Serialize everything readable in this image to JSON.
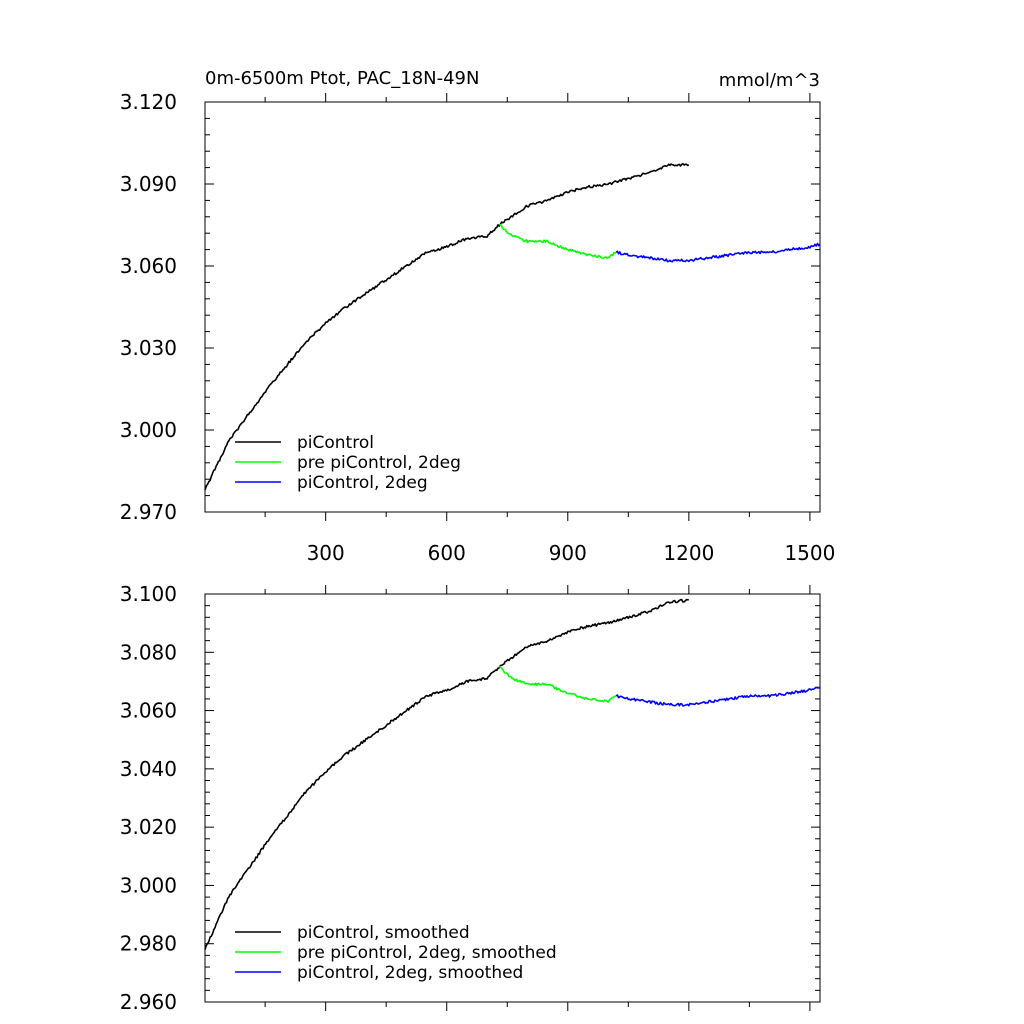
{
  "chart_data": [
    {
      "type": "line",
      "title": "0m-6500m Ptot, PAC_18N-49N",
      "units": "mmol/m^3",
      "xlim": [
        1,
        1525
      ],
      "ylim": [
        2.97,
        3.12
      ],
      "xticks": [
        300,
        600,
        900,
        1200,
        1500
      ],
      "yticks": [
        2.97,
        3.0,
        3.03,
        3.06,
        3.09,
        3.12
      ],
      "ytick_labels": [
        "2.970",
        "3.000",
        "3.030",
        "3.060",
        "3.090",
        "3.120"
      ],
      "show_x_tick_labels": true,
      "grid": false,
      "legend_position": "bottom-left",
      "series": [
        {
          "name": "piControl",
          "color": "#000000",
          "x": [
            1,
            20,
            40,
            60,
            80,
            100,
            130,
            160,
            200,
            250,
            300,
            350,
            400,
            450,
            500,
            550,
            600,
            650,
            700,
            730,
            760,
            800,
            850,
            900,
            950,
            1000,
            1050,
            1100,
            1150,
            1200
          ],
          "y": [
            2.978,
            2.984,
            2.99,
            2.996,
            3.0,
            3.004,
            3.01,
            3.016,
            3.023,
            3.032,
            3.039,
            3.045,
            3.05,
            3.055,
            3.06,
            3.065,
            3.067,
            3.07,
            3.071,
            3.075,
            3.078,
            3.082,
            3.084,
            3.087,
            3.089,
            3.09,
            3.092,
            3.094,
            3.097,
            3.097
          ]
        },
        {
          "name": "pre piControl, 2deg",
          "color": "#00ff00",
          "x": [
            730,
            760,
            800,
            850,
            900,
            950,
            1000,
            1020
          ],
          "y": [
            3.075,
            3.071,
            3.069,
            3.069,
            3.066,
            3.064,
            3.063,
            3.065
          ]
        },
        {
          "name": "piControl, 2deg",
          "color": "#0000ff",
          "x": [
            1020,
            1050,
            1100,
            1150,
            1200,
            1250,
            1300,
            1350,
            1400,
            1450,
            1500,
            1525
          ],
          "y": [
            3.065,
            3.064,
            3.063,
            3.062,
            3.062,
            3.063,
            3.064,
            3.065,
            3.065,
            3.066,
            3.067,
            3.068
          ]
        }
      ]
    },
    {
      "type": "line",
      "title": "",
      "units": "",
      "xlim": [
        1,
        1525
      ],
      "ylim": [
        2.96,
        3.1
      ],
      "xticks": [
        300,
        600,
        900,
        1200,
        1500
      ],
      "yticks": [
        2.96,
        2.98,
        3.0,
        3.02,
        3.04,
        3.06,
        3.08,
        3.1
      ],
      "ytick_labels": [
        "2.960",
        "2.980",
        "3.000",
        "3.020",
        "3.040",
        "3.060",
        "3.080",
        "3.100"
      ],
      "show_x_tick_labels": false,
      "grid": false,
      "legend_position": "bottom-left",
      "series": [
        {
          "name": "piControl, smoothed",
          "color": "#000000",
          "x": [
            1,
            20,
            40,
            60,
            80,
            100,
            130,
            160,
            200,
            250,
            300,
            350,
            400,
            450,
            500,
            550,
            600,
            650,
            700,
            730,
            760,
            800,
            850,
            900,
            950,
            1000,
            1050,
            1100,
            1150,
            1200
          ],
          "y": [
            2.978,
            2.984,
            2.99,
            2.996,
            3.0,
            3.004,
            3.01,
            3.016,
            3.023,
            3.032,
            3.039,
            3.045,
            3.05,
            3.055,
            3.06,
            3.065,
            3.067,
            3.07,
            3.071,
            3.075,
            3.078,
            3.082,
            3.084,
            3.087,
            3.089,
            3.09,
            3.092,
            3.094,
            3.097,
            3.098
          ]
        },
        {
          "name": "pre piControl, 2deg, smoothed",
          "color": "#00ff00",
          "x": [
            730,
            760,
            800,
            850,
            900,
            950,
            1000,
            1020
          ],
          "y": [
            3.075,
            3.071,
            3.069,
            3.069,
            3.066,
            3.064,
            3.063,
            3.065
          ]
        },
        {
          "name": "piControl, 2deg, smoothed",
          "color": "#0000ff",
          "x": [
            1020,
            1050,
            1100,
            1150,
            1200,
            1250,
            1300,
            1350,
            1400,
            1450,
            1500,
            1525
          ],
          "y": [
            3.065,
            3.064,
            3.063,
            3.062,
            3.062,
            3.063,
            3.064,
            3.065,
            3.065,
            3.066,
            3.067,
            3.068
          ]
        }
      ]
    }
  ]
}
